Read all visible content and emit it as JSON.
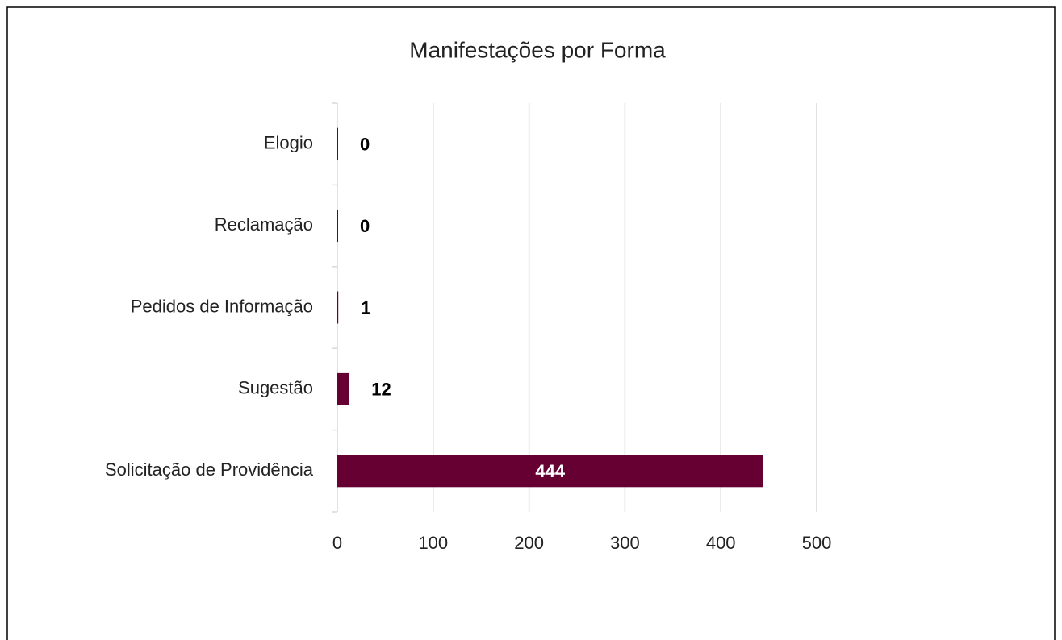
{
  "chart_data": {
    "type": "bar",
    "orientation": "horizontal",
    "title": "Manifestações por Forma",
    "categories": [
      "Elogio",
      "Reclamação",
      "Pedidos de Informação",
      "Sugestão",
      "Solicitação de Providência"
    ],
    "values": [
      0,
      0,
      1,
      12,
      444
    ],
    "color": "#660033",
    "xlim": [
      0,
      500
    ],
    "xticks": [
      0,
      100,
      200,
      300,
      400,
      500
    ],
    "grid": true
  }
}
